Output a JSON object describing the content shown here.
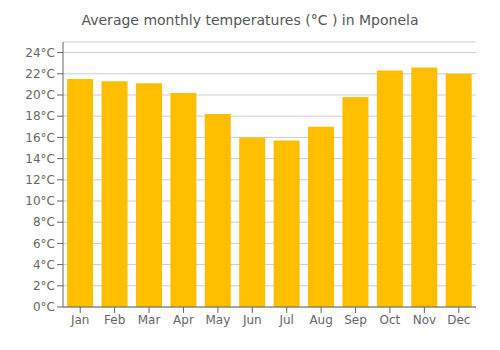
{
  "chart_data": {
    "type": "bar",
    "title": "Average monthly temperatures (°C ) in Mponela",
    "categories": [
      "Jan",
      "Feb",
      "Mar",
      "Apr",
      "May",
      "Jun",
      "Jul",
      "Aug",
      "Sep",
      "Oct",
      "Nov",
      "Dec"
    ],
    "values": [
      21.5,
      21.3,
      21.1,
      20.2,
      18.2,
      16.0,
      15.7,
      17.0,
      19.8,
      22.3,
      22.6,
      22.0
    ],
    "color": "#FFBE00",
    "ylim": [
      0,
      25
    ],
    "yticks": [
      {
        "value": 0,
        "label": "0°C"
      },
      {
        "value": 2,
        "label": "2°C"
      },
      {
        "value": 4,
        "label": "4°C"
      },
      {
        "value": 6,
        "label": "6°C"
      },
      {
        "value": 8,
        "label": "8°C"
      },
      {
        "value": 10,
        "label": "10°C"
      },
      {
        "value": 12,
        "label": "12°C"
      },
      {
        "value": 14,
        "label": "14°C"
      },
      {
        "value": 16,
        "label": "16°C"
      },
      {
        "value": 18,
        "label": "18°C"
      },
      {
        "value": 20,
        "label": "20°C"
      },
      {
        "value": 22,
        "label": "22°C"
      },
      {
        "value": 24,
        "label": "24°C"
      }
    ],
    "grid": true
  }
}
